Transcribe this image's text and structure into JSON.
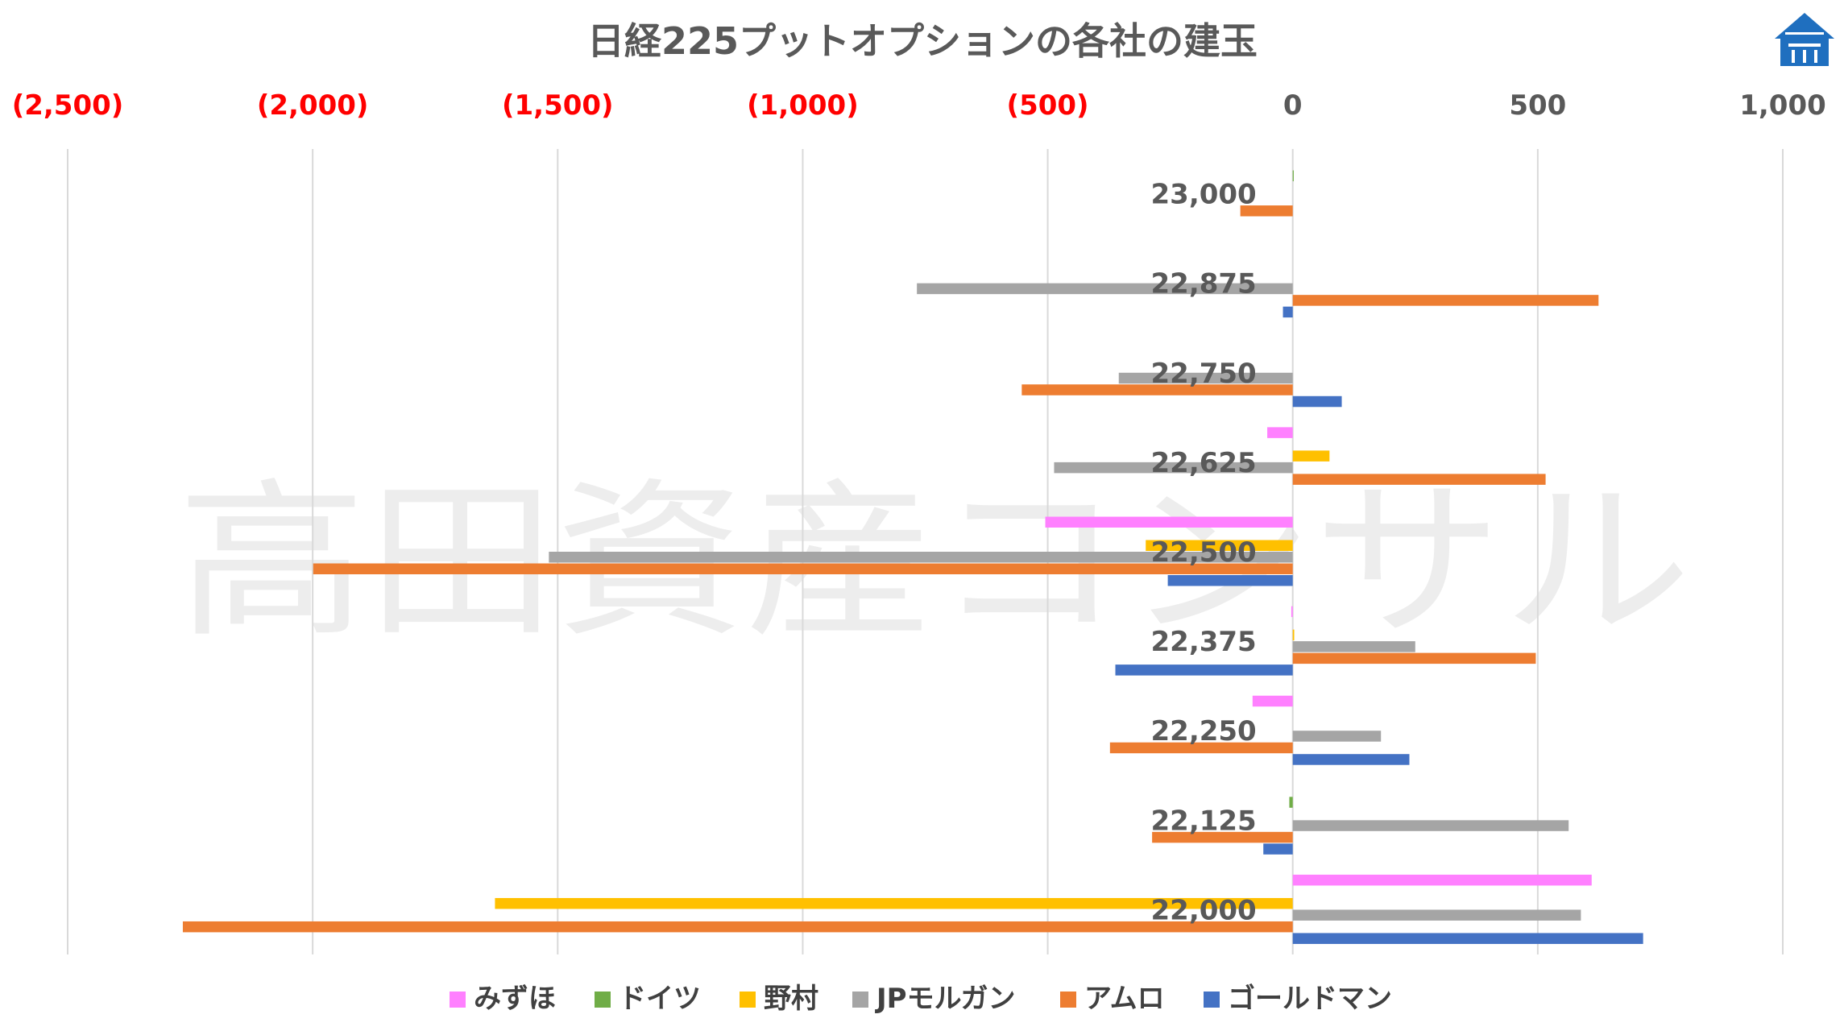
{
  "watermark": "高田資産コンサル",
  "chart_data": {
    "type": "bar",
    "orientation": "horizontal",
    "title": "日経225プットオプションの各社の建玉",
    "xlim": [
      -2500,
      1000
    ],
    "ticks": [
      {
        "value": -2500,
        "label": "(2,500)"
      },
      {
        "value": -2000,
        "label": "(2,000)"
      },
      {
        "value": -1500,
        "label": "(1,500)"
      },
      {
        "value": -1000,
        "label": "(1,000)"
      },
      {
        "value": -500,
        "label": "(500)"
      },
      {
        "value": 0,
        "label": "0"
      },
      {
        "value": 500,
        "label": "500"
      },
      {
        "value": 1000,
        "label": "1,000"
      }
    ],
    "grid": true,
    "legend_position": "bottom",
    "categories": [
      "23,000",
      "22,875",
      "22,750",
      "22,625",
      "22,500",
      "22,375",
      "22,250",
      "22,125",
      "22,000"
    ],
    "series": [
      {
        "name": "みずほ",
        "color": "#ff80ff",
        "values": [
          0,
          0,
          0,
          -52,
          -505,
          -3,
          -82,
          0,
          610
        ]
      },
      {
        "name": "ドイツ",
        "color": "#70ad47",
        "values": [
          2,
          0,
          0,
          0,
          0,
          0,
          0,
          -7,
          0
        ]
      },
      {
        "name": "野村",
        "color": "#ffc000",
        "values": [
          0,
          0,
          0,
          75,
          -300,
          3,
          0,
          0,
          -1628
        ]
      },
      {
        "name": "JPモルガン",
        "color": "#a5a5a5",
        "values": [
          0,
          -767,
          -355,
          -487,
          -1518,
          250,
          180,
          563,
          588
        ]
      },
      {
        "name": "アムロ",
        "color": "#ed7d31",
        "values": [
          -107,
          624,
          -553,
          516,
          -1999,
          496,
          -373,
          -287,
          -2265
        ]
      },
      {
        "name": "ゴールドマン",
        "color": "#4472c4",
        "values": [
          0,
          -20,
          100,
          0,
          -255,
          -362,
          238,
          -60,
          715
        ]
      }
    ]
  }
}
